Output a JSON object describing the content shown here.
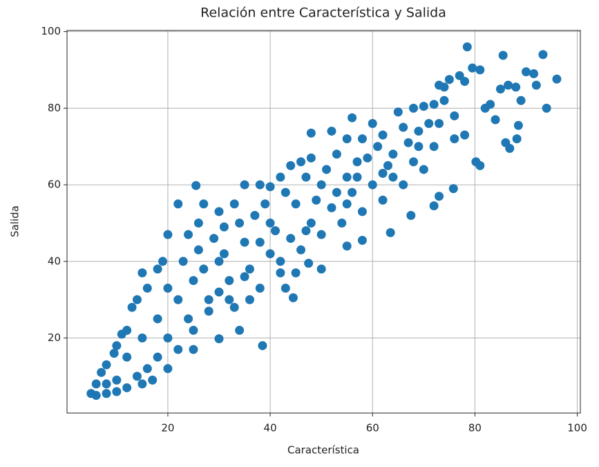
{
  "chart_data": {
    "type": "scatter",
    "title": "Relación entre Característica y Salida",
    "x_label": "Característica",
    "y_label": "Salida",
    "color": "#1f77b4",
    "grid": true,
    "xlim": [
      0.3,
      100.6
    ],
    "ylim": [
      0.4,
      100.3
    ],
    "xticks": [
      20,
      40,
      60,
      80,
      100
    ],
    "yticks": [
      20,
      40,
      60,
      80,
      100
    ],
    "series": [
      {
        "name": "Salida",
        "x": [
          78.5,
          85.5,
          93.3,
          96,
          94,
          90,
          91.5,
          88,
          86.5,
          79.5,
          81,
          77,
          75,
          73,
          74,
          78,
          84,
          86,
          86.8,
          88.2,
          88.5,
          80.2,
          81,
          75.8,
          73,
          72,
          67.5,
          63.5,
          58,
          55,
          50,
          47.5,
          45,
          42,
          43,
          44.5,
          38.5,
          34,
          30,
          25,
          20,
          17,
          15,
          12,
          10,
          8,
          6,
          5,
          6,
          7,
          8,
          9.5,
          10,
          11,
          12,
          13,
          14,
          15,
          16,
          18,
          19,
          20,
          22,
          25.5,
          27,
          26,
          24,
          30,
          33,
          35,
          38,
          40,
          42,
          44,
          46,
          48,
          48,
          52,
          55,
          56,
          60,
          58,
          62,
          65,
          66,
          68,
          70,
          72,
          74,
          76,
          71,
          69,
          64,
          62,
          55,
          50,
          45,
          40,
          35,
          30,
          25,
          22,
          18,
          15,
          12,
          28,
          32,
          36,
          40,
          44,
          48,
          52,
          56,
          60,
          64,
          68,
          72,
          76,
          33,
          38,
          42,
          46,
          50,
          54,
          58,
          62,
          66,
          70,
          20,
          24,
          28,
          32,
          36,
          25,
          22,
          18,
          16,
          14,
          10,
          8,
          20,
          23,
          26,
          29,
          31,
          34,
          37,
          39,
          43,
          47,
          51,
          53,
          57,
          61,
          63,
          67,
          69,
          73,
          78,
          82,
          83,
          85,
          89,
          92,
          27,
          31,
          38,
          41,
          49,
          53,
          57,
          59,
          47,
          55,
          35,
          30
        ],
        "values": [
          96,
          93.8,
          94,
          87.6,
          80,
          89.5,
          89,
          85.5,
          86,
          90.5,
          90,
          88.5,
          87.5,
          86,
          85.5,
          87,
          77,
          71,
          69.5,
          72,
          75.5,
          66,
          65,
          59,
          57,
          54.5,
          52,
          47.5,
          45.5,
          44,
          38,
          39.5,
          37,
          37,
          33,
          30.5,
          18,
          22,
          19.8,
          17,
          12,
          9,
          8,
          7,
          6,
          5.5,
          5,
          5.5,
          8,
          11,
          13,
          16,
          18,
          21,
          22,
          28,
          30,
          37,
          33,
          38,
          40,
          47,
          55,
          59.8,
          55,
          50,
          47,
          53,
          55,
          60,
          60,
          59.5,
          62,
          65,
          66,
          67,
          73.5,
          74,
          72,
          77.5,
          76,
          72,
          73,
          79,
          75,
          80,
          80.5,
          81,
          82,
          78,
          76,
          70,
          68,
          63,
          62,
          60,
          55,
          50,
          45,
          40,
          35,
          30,
          25,
          20,
          15,
          30,
          35,
          38,
          42,
          46,
          50,
          54,
          58,
          60,
          62,
          66,
          70,
          72,
          28,
          33,
          40,
          43,
          47,
          50,
          53,
          56,
          60,
          64,
          20,
          25,
          27,
          30,
          30,
          22,
          17,
          15,
          12,
          10,
          9,
          8,
          33,
          40,
          43,
          46,
          49,
          50,
          52,
          55,
          58,
          62,
          64,
          68,
          66,
          70,
          65,
          71,
          74,
          76,
          73,
          80,
          81,
          85,
          82,
          86,
          38,
          42,
          45,
          48,
          56,
          58,
          62,
          67,
          48,
          55,
          36,
          32
        ]
      }
    ]
  }
}
